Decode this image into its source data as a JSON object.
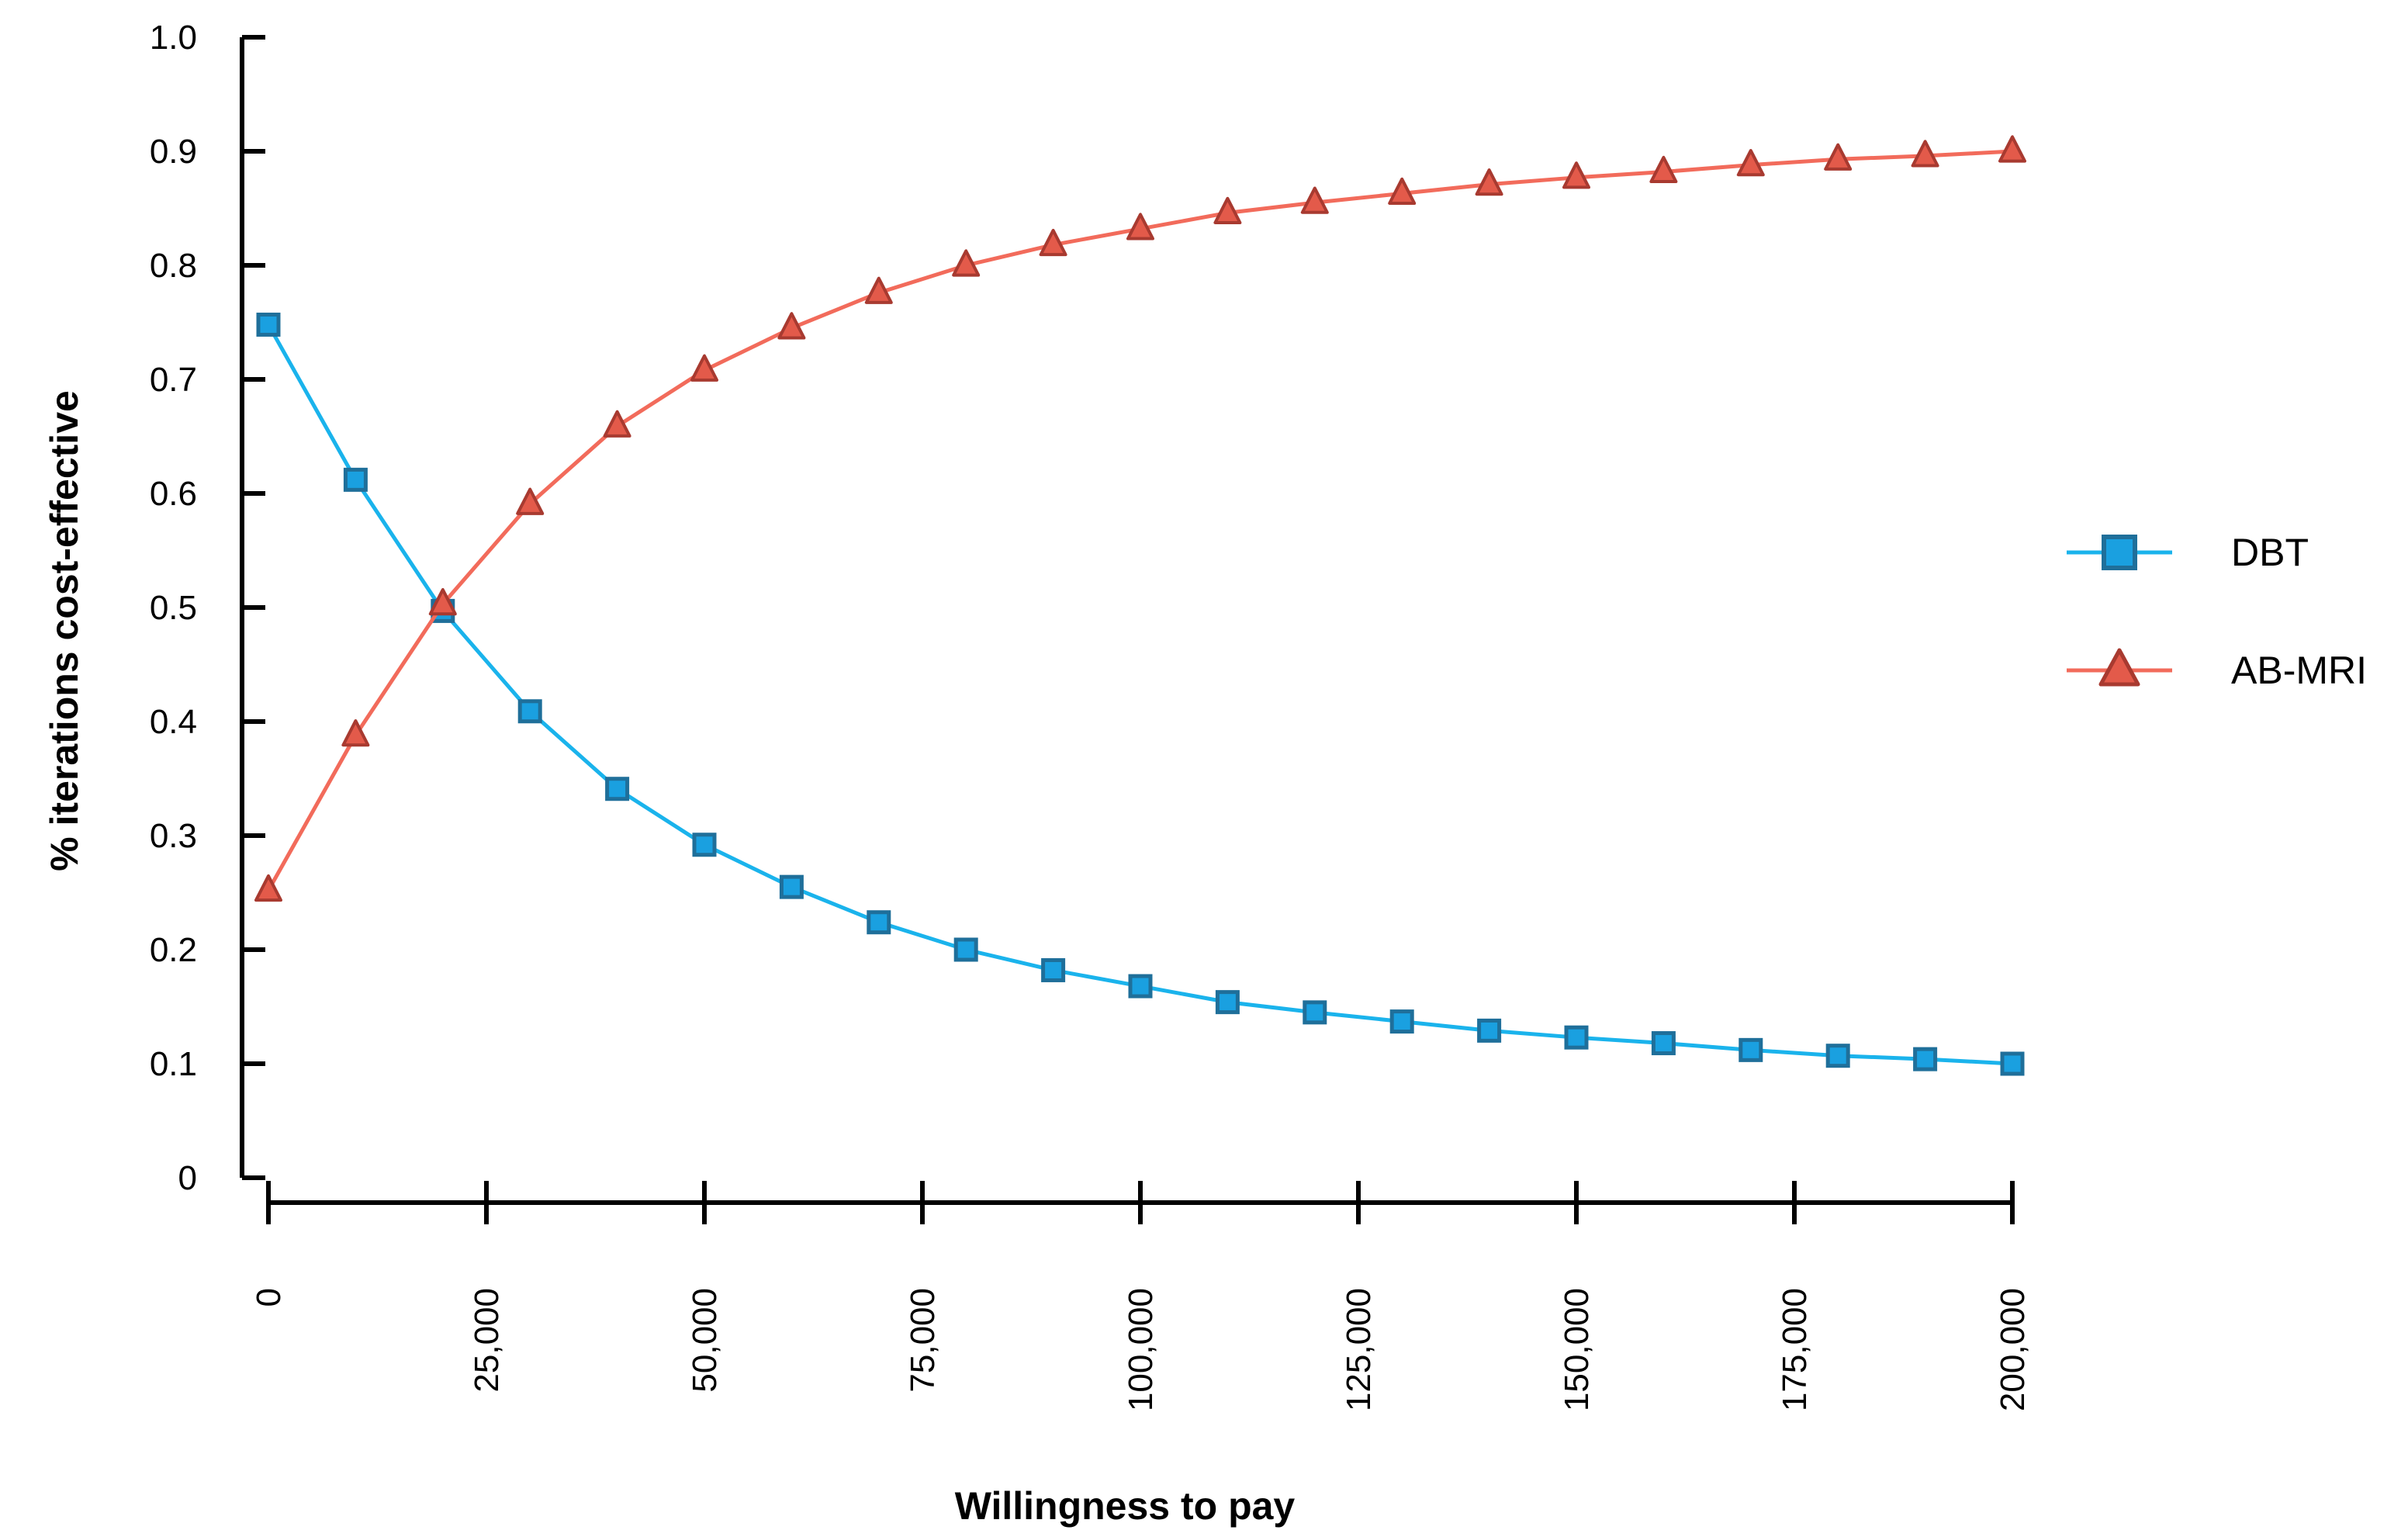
{
  "chart_data": {
    "type": "line",
    "xlabel": "Willingness to pay",
    "ylabel": "% iterations cost-effective",
    "xlim": [
      0,
      200000
    ],
    "ylim": [
      0,
      1.0
    ],
    "xticks": [
      "0",
      "25,000",
      "50,000",
      "75,000",
      "100,000",
      "125,000",
      "150,000",
      "175,000",
      "200,000"
    ],
    "xtick_values": [
      0,
      25000,
      50000,
      75000,
      100000,
      125000,
      150000,
      175000,
      200000
    ],
    "yticks": [
      "0",
      "0.1",
      "0.2",
      "0.3",
      "0.4",
      "0.5",
      "0.6",
      "0.7",
      "0.8",
      "0.9",
      "1.0"
    ],
    "ytick_values": [
      0,
      0.1,
      0.2,
      0.3,
      0.4,
      0.5,
      0.6,
      0.7,
      0.8,
      0.9,
      1.0
    ],
    "grid": false,
    "legend_position": "right",
    "x": [
      0,
      10000,
      20000,
      30000,
      40000,
      50000,
      60000,
      70000,
      80000,
      90000,
      100000,
      110000,
      120000,
      130000,
      140000,
      150000,
      160000,
      170000,
      180000,
      190000,
      200000
    ],
    "series": [
      {
        "name": "DBT",
        "marker": "square",
        "line_color": "#1ab3ec",
        "fill_color": "#1aa0e0",
        "edge_color": "#1f6f9a",
        "values": [
          0.748,
          0.612,
          0.497,
          0.409,
          0.341,
          0.292,
          0.255,
          0.224,
          0.2,
          0.182,
          0.168,
          0.154,
          0.145,
          0.137,
          0.129,
          0.123,
          0.118,
          0.112,
          0.107,
          0.104,
          0.1
        ]
      },
      {
        "name": "AB-MRI",
        "marker": "triangle",
        "line_color": "#f26b5b",
        "fill_color": "#e35a4a",
        "edge_color": "#a83a30",
        "values": [
          0.252,
          0.388,
          0.503,
          0.591,
          0.659,
          0.708,
          0.745,
          0.776,
          0.8,
          0.818,
          0.832,
          0.846,
          0.855,
          0.863,
          0.871,
          0.877,
          0.882,
          0.888,
          0.893,
          0.896,
          0.9
        ]
      }
    ]
  }
}
